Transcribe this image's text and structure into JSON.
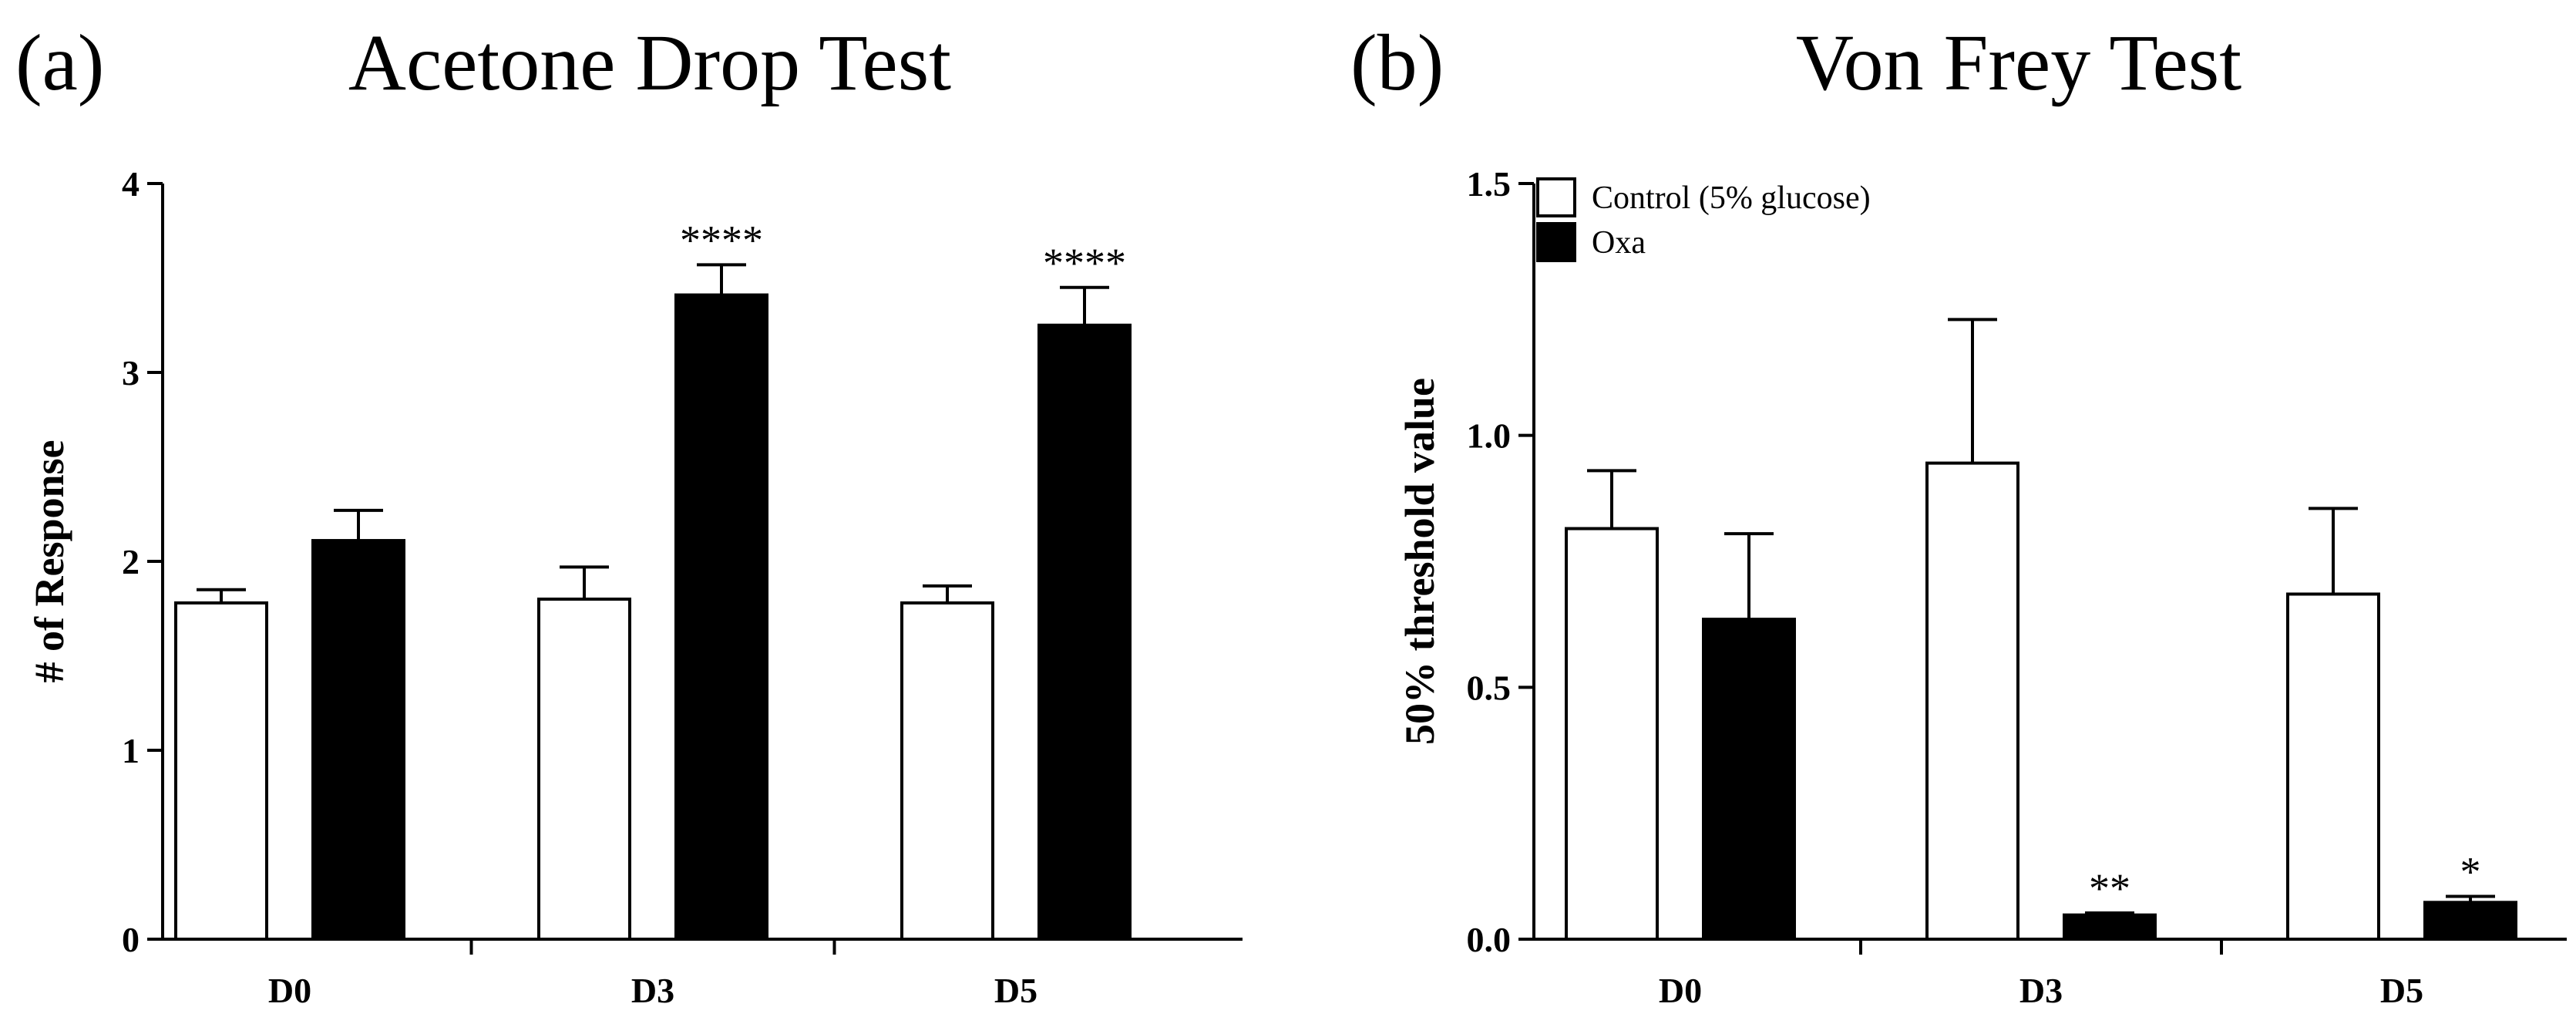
{
  "chart_data": [
    {
      "panel": "(a)",
      "type": "bar",
      "title": "Acetone Drop Test",
      "xlabel": "",
      "ylabel": "# of Response",
      "ylim": [
        0,
        4
      ],
      "yticks": [
        "0",
        "1",
        "2",
        "3",
        "4"
      ],
      "categories": [
        "D0",
        "D3",
        "D5"
      ],
      "series": [
        {
          "key": "control",
          "fill": "#ffffff",
          "values": [
            1.78,
            1.8,
            1.78
          ],
          "errors": [
            0.07,
            0.17,
            0.09
          ]
        },
        {
          "key": "oxa",
          "fill": "#000000",
          "values": [
            2.11,
            3.41,
            3.25
          ],
          "errors": [
            0.16,
            0.16,
            0.2
          ]
        }
      ],
      "annotations": [
        {
          "category": "D3",
          "series": "oxa",
          "text": "****"
        },
        {
          "category": "D5",
          "series": "oxa",
          "text": "****"
        }
      ]
    },
    {
      "panel": "(b)",
      "type": "bar",
      "title": "Von Frey Test",
      "xlabel": "",
      "ylabel": "50% threshold value",
      "ylim": [
        0,
        1.5
      ],
      "yticks": [
        "0.0",
        "0.5",
        "1.0",
        "1.5"
      ],
      "categories": [
        "D0",
        "D3",
        "D5"
      ],
      "legend": {
        "position": "top-left",
        "entries": [
          {
            "label": "Control (5% glucose)",
            "fill": "#ffffff"
          },
          {
            "label": "Oxa",
            "fill": "#000000"
          }
        ]
      },
      "series": [
        {
          "key": "control",
          "name": "Control (5% glucose)",
          "fill": "#ffffff",
          "values": [
            0.815,
            0.945,
            0.685
          ],
          "errors": [
            0.115,
            0.285,
            0.17
          ]
        },
        {
          "key": "oxa",
          "name": "Oxa",
          "fill": "#000000",
          "values": [
            0.635,
            0.048,
            0.073
          ],
          "errors": [
            0.17,
            0.004,
            0.012
          ]
        }
      ],
      "annotations": [
        {
          "category": "D3",
          "series": "oxa",
          "text": "**"
        },
        {
          "category": "D5",
          "series": "oxa",
          "text": "*"
        }
      ]
    }
  ]
}
